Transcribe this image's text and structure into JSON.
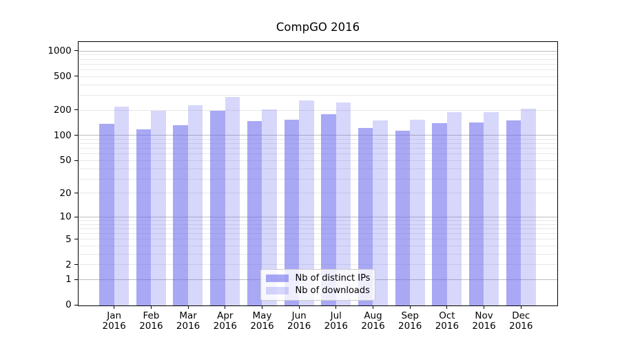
{
  "figure": {
    "background": "#ffffff",
    "spine_color": "#000000",
    "text_color": "#000000"
  },
  "chart_data": {
    "type": "bar",
    "title": "CompGO 2016",
    "categories": [
      "Jan",
      "Feb",
      "Mar",
      "Apr",
      "May",
      "Jun",
      "Jul",
      "Aug",
      "Sep",
      "Oct",
      "Nov",
      "Dec"
    ],
    "year_label": "2016",
    "series": [
      {
        "name": "Nb of distinct IPs",
        "key": "distinct-ips",
        "color": "rgba(102,102,238,0.57)",
        "values": [
          136,
          118,
          132,
          196,
          148,
          153,
          179,
          123,
          114,
          139,
          143,
          150
        ]
      },
      {
        "name": "Nb of downloads",
        "key": "downloads",
        "color": "rgba(102,102,238,0.26)",
        "values": [
          219,
          196,
          227,
          286,
          205,
          260,
          245,
          152,
          153,
          188,
          188,
          208
        ]
      }
    ],
    "xlabel": "",
    "ylabel": "",
    "y_scale": "log1p",
    "ylim": [
      0,
      1280
    ],
    "y_ticks": [
      0,
      1,
      2,
      5,
      10,
      20,
      50,
      100,
      200,
      500,
      1000
    ],
    "grid": {
      "major_values": [
        1,
        10,
        100,
        1000
      ],
      "minor_values": [
        2,
        3,
        4,
        5,
        6,
        7,
        8,
        9,
        20,
        30,
        40,
        50,
        60,
        70,
        80,
        90,
        200,
        300,
        400,
        500,
        600,
        700,
        800,
        900
      ],
      "major_color": "#bcbcbc",
      "minor_color": "#e7e7e7"
    },
    "legend": {
      "position": "lower center",
      "entries": [
        "Nb of distinct IPs",
        "Nb of downloads"
      ]
    }
  }
}
